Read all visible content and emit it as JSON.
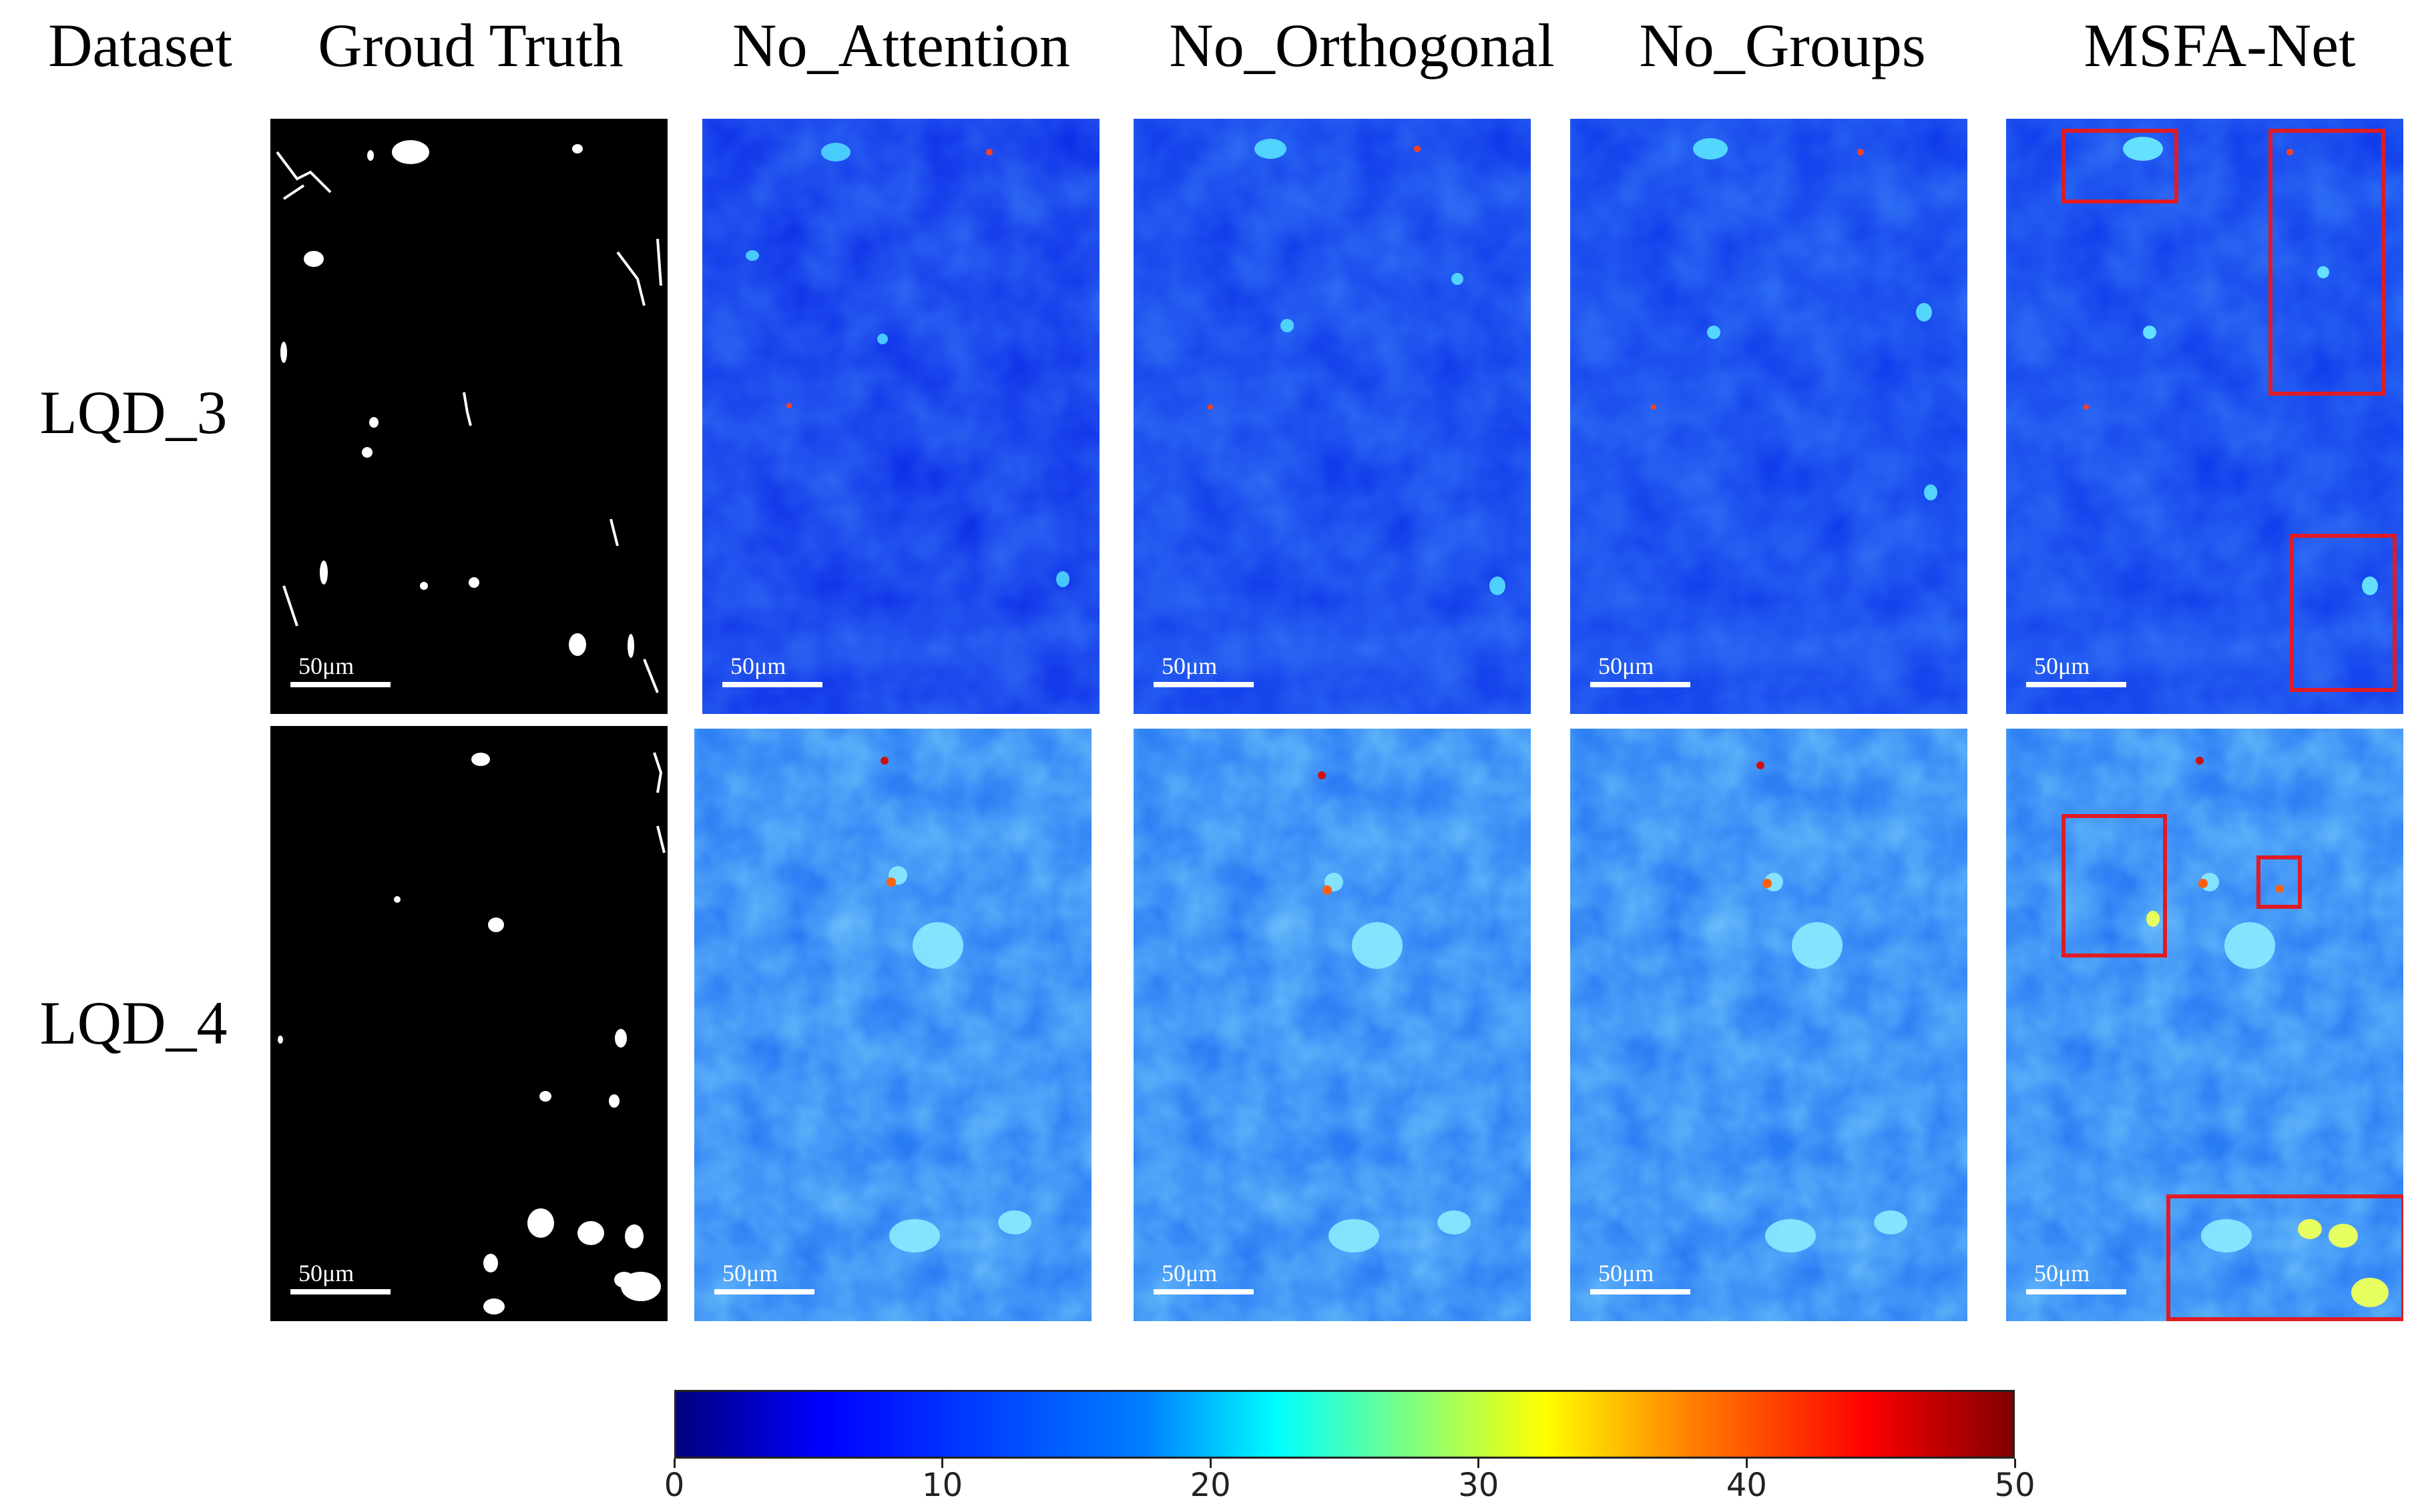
{
  "headers": [
    "Dataset",
    "Groud Truth",
    "No_Attention",
    "No_Orthogonal",
    "No_Groups",
    "MSFA-Net"
  ],
  "rows": [
    "LQD_3",
    "LQD_4"
  ],
  "scale_label": "50μm",
  "colorbar": {
    "min": 0,
    "max": 50,
    "ticks": [
      "0",
      "10",
      "20",
      "30",
      "40",
      "50"
    ],
    "colormap": "jet"
  },
  "colors": {
    "highlight_box": "#e01b24",
    "ground_truth_bg": "#000000",
    "ground_truth_fg": "#ffffff"
  }
}
